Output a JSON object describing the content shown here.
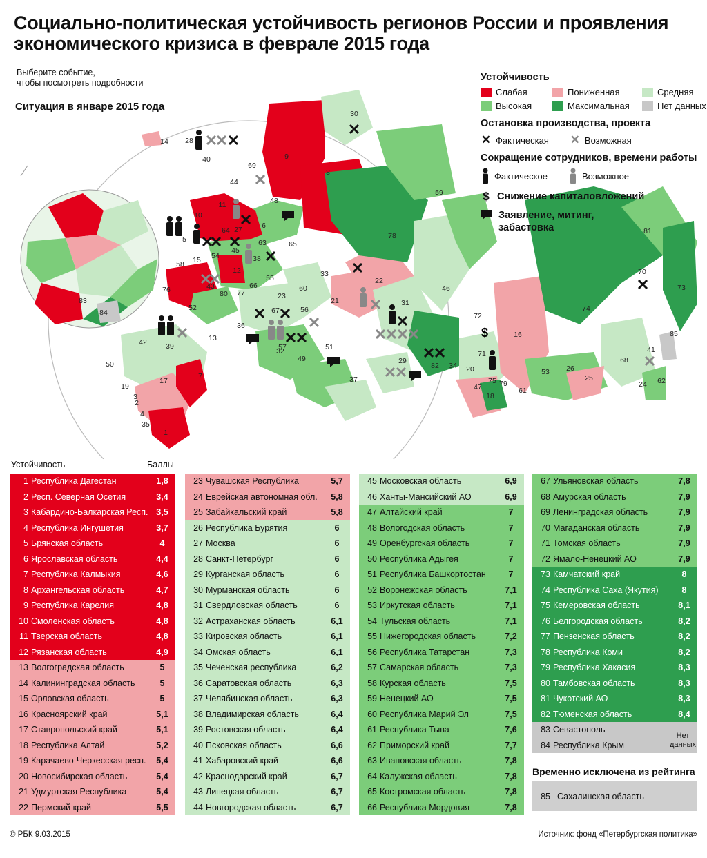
{
  "title": "Социально-политическая устойчивость регионов России и проявления экономического кризиса в феврале 2015 года",
  "hint": [
    "Выберите событие,",
    "чтобы посмотреть подробности"
  ],
  "inset_label": "Ситуация в январе 2015 года",
  "colors": {
    "weak": "#e3001b",
    "lowered": "#f2a4a8",
    "medium": "#c6e8c5",
    "high": "#7ccd7a",
    "maximum": "#2e9e4f",
    "nodata": "#c8c8c8",
    "dark_icon": "#111111",
    "grey_icon": "#888888"
  },
  "legend": {
    "stability_title": "Устойчивость",
    "levels": [
      {
        "key": "weak",
        "label": "Слабая"
      },
      {
        "key": "lowered",
        "label": "Пониженная"
      },
      {
        "key": "medium",
        "label": "Средняя"
      },
      {
        "key": "high",
        "label": "Высокая"
      },
      {
        "key": "maximum",
        "label": "Максимальная"
      },
      {
        "key": "nodata",
        "label": "Нет данных"
      }
    ],
    "halt_title": "Остановка производства, проекта",
    "halt_actual": "Фактическая",
    "halt_possible": "Возможная",
    "cuts_title": "Сокращение сотрудников, времени работы",
    "cuts_actual": "Фактическое",
    "cuts_possible": "Возможное",
    "invest_cut": "Снижение капиталовложений",
    "statement": "Заявление, митинг, забастовка",
    "icons": {
      "halt": "x-mark-icon",
      "cut": "person-icon",
      "invest": "dollar-icon",
      "statement": "speech-bubble-icon"
    }
  },
  "map_labels": [
    "1",
    "2",
    "3",
    "4",
    "5",
    "6",
    "7",
    "8",
    "9",
    "10",
    "11",
    "12",
    "13",
    "14",
    "15",
    "16",
    "17",
    "18",
    "19",
    "20",
    "21",
    "22",
    "23",
    "24",
    "25",
    "26",
    "27",
    "28",
    "29",
    "30",
    "31",
    "32",
    "33",
    "34",
    "35",
    "36",
    "37",
    "38",
    "39",
    "40",
    "41",
    "42",
    "43",
    "44",
    "45",
    "46",
    "47",
    "48",
    "49",
    "50",
    "51",
    "52",
    "53",
    "54",
    "55",
    "56",
    "57",
    "58",
    "59",
    "60",
    "61",
    "62",
    "63",
    "64",
    "65",
    "66",
    "67",
    "68",
    "69",
    "70",
    "71",
    "72",
    "73",
    "74",
    "75",
    "76",
    "77",
    "78",
    "79",
    "80",
    "81",
    "82",
    "83",
    "84",
    "85"
  ],
  "table": {
    "col_stability": "Устойчивость",
    "col_score": "Баллы",
    "columns": [
      [
        {
          "n": "1",
          "name": "Республика Дагестан",
          "score": "1,8",
          "level": "weak"
        },
        {
          "n": "2",
          "name": "Респ. Северная Осетия",
          "score": "3,4",
          "level": "weak"
        },
        {
          "n": "3",
          "name": "Кабардино-Балкарская Респ.",
          "score": "3,5",
          "level": "weak"
        },
        {
          "n": "4",
          "name": "Республика Ингушетия",
          "score": "3,7",
          "level": "weak"
        },
        {
          "n": "5",
          "name": "Брянская область",
          "score": "4",
          "level": "weak"
        },
        {
          "n": "6",
          "name": "Ярославская область",
          "score": "4,4",
          "level": "weak"
        },
        {
          "n": "7",
          "name": "Республика Калмыкия",
          "score": "4,6",
          "level": "weak"
        },
        {
          "n": "8",
          "name": "Архангельская область",
          "score": "4,7",
          "level": "weak"
        },
        {
          "n": "9",
          "name": "Республика Карелия",
          "score": "4,8",
          "level": "weak"
        },
        {
          "n": "10",
          "name": "Смоленская область",
          "score": "4,8",
          "level": "weak"
        },
        {
          "n": "11",
          "name": "Тверская область",
          "score": "4,8",
          "level": "weak"
        },
        {
          "n": "12",
          "name": "Рязанская область",
          "score": "4,9",
          "level": "weak"
        },
        {
          "n": "13",
          "name": "Волгоградская область",
          "score": "5",
          "level": "lowered"
        },
        {
          "n": "14",
          "name": "Калининградская область",
          "score": "5",
          "level": "lowered"
        },
        {
          "n": "15",
          "name": "Орловская область",
          "score": "5",
          "level": "lowered"
        },
        {
          "n": "16",
          "name": "Красноярский край",
          "score": "5,1",
          "level": "lowered"
        },
        {
          "n": "17",
          "name": "Ставропольский край",
          "score": "5,1",
          "level": "lowered"
        },
        {
          "n": "18",
          "name": "Республика Алтай",
          "score": "5,2",
          "level": "lowered"
        },
        {
          "n": "19",
          "name": "Карачаево-Черкесская респ.",
          "score": "5,4",
          "level": "lowered"
        },
        {
          "n": "20",
          "name": "Новосибирская область",
          "score": "5,4",
          "level": "lowered"
        },
        {
          "n": "21",
          "name": "Удмуртская Республика",
          "score": "5,4",
          "level": "lowered"
        },
        {
          "n": "22",
          "name": "Пермский край",
          "score": "5,5",
          "level": "lowered"
        }
      ],
      [
        {
          "n": "23",
          "name": "Чувашская Республика",
          "score": "5,7",
          "level": "lowered"
        },
        {
          "n": "24",
          "name": "Еврейская автономная обл.",
          "score": "5,8",
          "level": "lowered"
        },
        {
          "n": "25",
          "name": "Забайкальский край",
          "score": "5,8",
          "level": "lowered"
        },
        {
          "n": "26",
          "name": "Республика Бурятия",
          "score": "6",
          "level": "medium"
        },
        {
          "n": "27",
          "name": "Москва",
          "score": "6",
          "level": "medium"
        },
        {
          "n": "28",
          "name": "Санкт-Петербург",
          "score": "6",
          "level": "medium"
        },
        {
          "n": "29",
          "name": "Курганская область",
          "score": "6",
          "level": "medium"
        },
        {
          "n": "30",
          "name": "Мурманская область",
          "score": "6",
          "level": "medium"
        },
        {
          "n": "31",
          "name": "Свердловская область",
          "score": "6",
          "level": "medium"
        },
        {
          "n": "32",
          "name": "Астраханская область",
          "score": "6,1",
          "level": "medium"
        },
        {
          "n": "33",
          "name": "Кировская область",
          "score": "6,1",
          "level": "medium"
        },
        {
          "n": "34",
          "name": "Омская область",
          "score": "6,1",
          "level": "medium"
        },
        {
          "n": "35",
          "name": "Чеченская республика",
          "score": "6,2",
          "level": "medium"
        },
        {
          "n": "36",
          "name": "Саратовская область",
          "score": "6,3",
          "level": "medium"
        },
        {
          "n": "37",
          "name": "Челябинская область",
          "score": "6,3",
          "level": "medium"
        },
        {
          "n": "38",
          "name": "Владимирская область",
          "score": "6,4",
          "level": "medium"
        },
        {
          "n": "39",
          "name": "Ростовская область",
          "score": "6,4",
          "level": "medium"
        },
        {
          "n": "40",
          "name": "Псковская область",
          "score": "6,6",
          "level": "medium"
        },
        {
          "n": "41",
          "name": "Хабаровский край",
          "score": "6,6",
          "level": "medium"
        },
        {
          "n": "42",
          "name": "Краснодарский край",
          "score": "6,7",
          "level": "medium"
        },
        {
          "n": "43",
          "name": "Липецкая область",
          "score": "6,7",
          "level": "medium"
        },
        {
          "n": "44",
          "name": "Новгородская область",
          "score": "6,7",
          "level": "medium"
        }
      ],
      [
        {
          "n": "45",
          "name": "Московская область",
          "score": "6,9",
          "level": "medium"
        },
        {
          "n": "46",
          "name": "Ханты-Мансийский АО",
          "score": "6,9",
          "level": "medium"
        },
        {
          "n": "47",
          "name": "Алтайский край",
          "score": "7",
          "level": "high"
        },
        {
          "n": "48",
          "name": "Вологодская область",
          "score": "7",
          "level": "high"
        },
        {
          "n": "49",
          "name": "Оренбургская область",
          "score": "7",
          "level": "high"
        },
        {
          "n": "50",
          "name": "Республика Адыгея",
          "score": "7",
          "level": "high"
        },
        {
          "n": "51",
          "name": "Республика Башкортостан",
          "score": "7",
          "level": "high"
        },
        {
          "n": "52",
          "name": "Воронежская область",
          "score": "7,1",
          "level": "high"
        },
        {
          "n": "53",
          "name": "Иркутская область",
          "score": "7,1",
          "level": "high"
        },
        {
          "n": "54",
          "name": "Тульская область",
          "score": "7,1",
          "level": "high"
        },
        {
          "n": "55",
          "name": "Нижегородская область",
          "score": "7,2",
          "level": "high"
        },
        {
          "n": "56",
          "name": "Республика Татарстан",
          "score": "7,3",
          "level": "high"
        },
        {
          "n": "57",
          "name": "Самарская область",
          "score": "7,3",
          "level": "high"
        },
        {
          "n": "58",
          "name": "Курская область",
          "score": "7,5",
          "level": "high"
        },
        {
          "n": "59",
          "name": "Ненецкий АО",
          "score": "7,5",
          "level": "high"
        },
        {
          "n": "60",
          "name": "Республика Марий Эл",
          "score": "7,5",
          "level": "high"
        },
        {
          "n": "61",
          "name": "Республика Тыва",
          "score": "7,6",
          "level": "high"
        },
        {
          "n": "62",
          "name": "Приморский край",
          "score": "7,7",
          "level": "high"
        },
        {
          "n": "63",
          "name": "Ивановская область",
          "score": "7,8",
          "level": "high"
        },
        {
          "n": "64",
          "name": "Калужская область",
          "score": "7,8",
          "level": "high"
        },
        {
          "n": "65",
          "name": "Костромская область",
          "score": "7,8",
          "level": "high"
        },
        {
          "n": "66",
          "name": "Республика Мордовия",
          "score": "7,8",
          "level": "high"
        }
      ],
      [
        {
          "n": "67",
          "name": "Ульяновская область",
          "score": "7,8",
          "level": "high"
        },
        {
          "n": "68",
          "name": "Амурская область",
          "score": "7,9",
          "level": "high"
        },
        {
          "n": "69",
          "name": "Ленинградская область",
          "score": "7,9",
          "level": "high"
        },
        {
          "n": "70",
          "name": "Магаданская область",
          "score": "7,9",
          "level": "high"
        },
        {
          "n": "71",
          "name": "Томская область",
          "score": "7,9",
          "level": "high"
        },
        {
          "n": "72",
          "name": "Ямало-Ненецкий АО",
          "score": "7,9",
          "level": "high"
        },
        {
          "n": "73",
          "name": "Камчатский край",
          "score": "8",
          "level": "maximum"
        },
        {
          "n": "74",
          "name": "Республика Саха (Якутия)",
          "score": "8",
          "level": "maximum"
        },
        {
          "n": "75",
          "name": "Кемеровская область",
          "score": "8,1",
          "level": "maximum"
        },
        {
          "n": "76",
          "name": "Белгородская область",
          "score": "8,2",
          "level": "maximum"
        },
        {
          "n": "77",
          "name": "Пензенская область",
          "score": "8,2",
          "level": "maximum"
        },
        {
          "n": "78",
          "name": "Республика Коми",
          "score": "8,2",
          "level": "maximum"
        },
        {
          "n": "79",
          "name": "Республика Хакасия",
          "score": "8,3",
          "level": "maximum"
        },
        {
          "n": "80",
          "name": "Тамбовская область",
          "score": "8,3",
          "level": "maximum"
        },
        {
          "n": "81",
          "name": "Чукотский АО",
          "score": "8,3",
          "level": "maximum"
        },
        {
          "n": "82",
          "name": "Тюменская область",
          "score": "8,4",
          "level": "maximum"
        },
        {
          "n": "83",
          "name": "Севастополь",
          "score": "",
          "level": "nodata"
        },
        {
          "n": "84",
          "name": "Республика Крым",
          "score": "",
          "level": "nodata"
        }
      ]
    ],
    "nodata_note": "Нет данных"
  },
  "excluded": {
    "title": "Временно исключена из рейтинга",
    "n": "85",
    "name": "Сахалинская область"
  },
  "footer": {
    "copyright": "© РБК 9.03.2015",
    "source": "Источник: фонд «Петербургская политика»"
  }
}
